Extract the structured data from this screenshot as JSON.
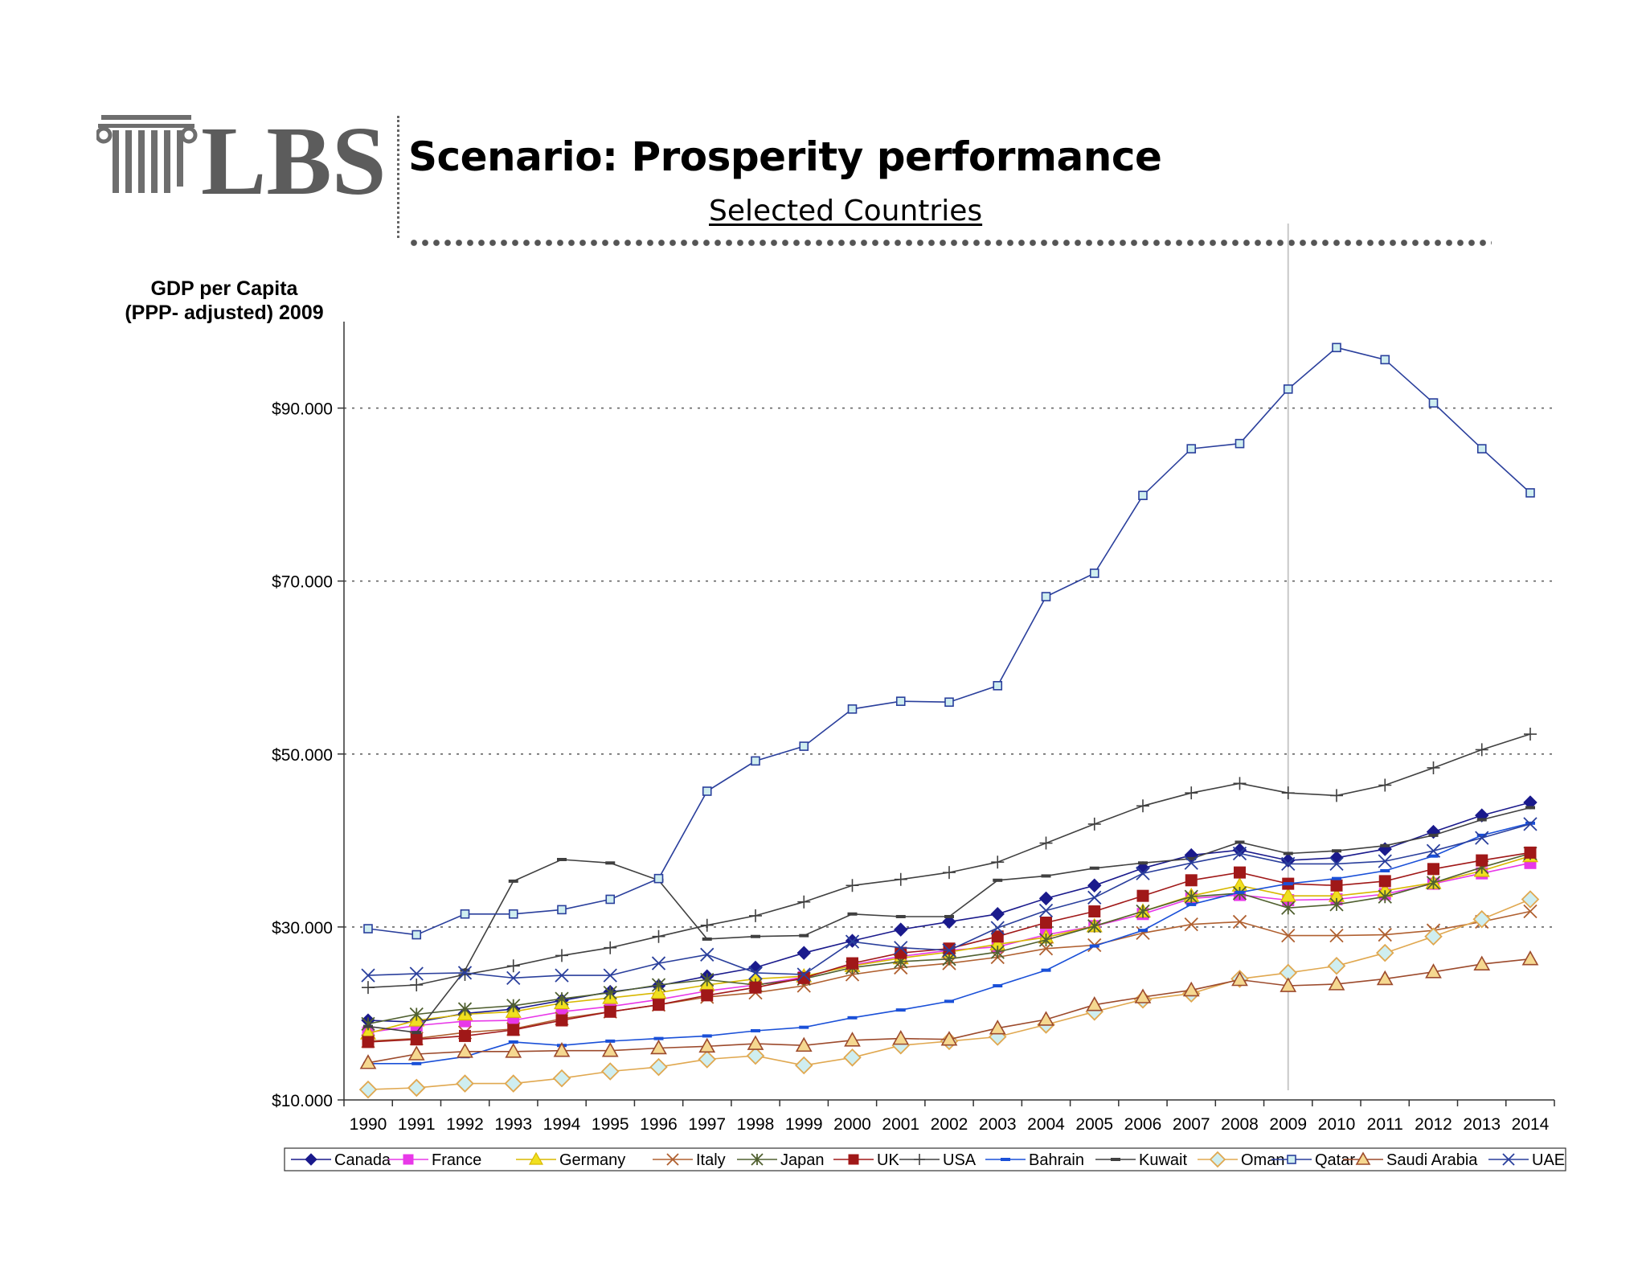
{
  "logo": {
    "text": "LBS"
  },
  "header": {
    "title": "Scenario: Prosperity performance",
    "subtitle": "Selected Countries"
  },
  "chart_data": {
    "type": "line",
    "title": "Scenario: Prosperity performance",
    "subtitle": "Selected Countries",
    "ylabel": "GDP per Capita (PPP- adjusted)  2009",
    "ylabel_lines": [
      "GDP per Capita",
      "(PPP- adjusted)  2009"
    ],
    "xlabel": "",
    "ylim": [
      10000,
      100000
    ],
    "y_ticks": [
      10000,
      30000,
      50000,
      70000,
      90000
    ],
    "y_tick_labels": [
      "$10.000",
      "$30.000",
      "$50.000",
      "$70.000",
      "$90.000"
    ],
    "gridlines": "horizontal dotted",
    "legend_position": "bottom",
    "reference_line_x": "2009",
    "x": [
      "1990",
      "1991",
      "1992",
      "1993",
      "1994",
      "1995",
      "1996",
      "1997",
      "1998",
      "1999",
      "2000",
      "2001",
      "2002",
      "2003",
      "2004",
      "2005",
      "2006",
      "2007",
      "2008",
      "2009",
      "2010",
      "2011",
      "2012",
      "2013",
      "2014"
    ],
    "series": [
      {
        "name": "Canada",
        "color": "#1a1a8c",
        "marker": "diamond-filled",
        "values": [
          19200,
          19000,
          20000,
          20500,
          21500,
          22500,
          23200,
          24300,
          25300,
          27000,
          28400,
          29700,
          30600,
          31500,
          33300,
          34800,
          36800,
          38300,
          38900,
          37700,
          38000,
          39000,
          41000,
          42900,
          44400
        ]
      },
      {
        "name": "France",
        "color": "#e838e8",
        "marker": "square-filled",
        "values": [
          17800,
          18600,
          19100,
          19200,
          20200,
          20800,
          21600,
          22600,
          23300,
          24200,
          25600,
          26600,
          27300,
          27700,
          29100,
          30100,
          31500,
          33300,
          33700,
          33100,
          33200,
          33800,
          35000,
          36200,
          37400
        ]
      },
      {
        "name": "Germany",
        "color": "#d8b800",
        "marker": "triangle-filled",
        "values": [
          17700,
          19200,
          19900,
          20200,
          21200,
          21800,
          22400,
          23300,
          24000,
          24300,
          25500,
          26400,
          27100,
          28000,
          28800,
          30100,
          31800,
          33600,
          34800,
          33600,
          33600,
          34200,
          35100,
          36500,
          38200
        ]
      },
      {
        "name": "Italy",
        "color": "#b06030",
        "marker": "x",
        "values": [
          16800,
          17100,
          17800,
          18200,
          19400,
          20200,
          21000,
          21900,
          22400,
          23200,
          24500,
          25300,
          25800,
          26500,
          27500,
          27900,
          29300,
          30300,
          30600,
          29000,
          29000,
          29100,
          29600,
          30600,
          31800
        ]
      },
      {
        "name": "Japan",
        "color": "#506030",
        "marker": "star",
        "values": [
          18800,
          19900,
          20500,
          20900,
          21700,
          22400,
          23300,
          23900,
          23300,
          24000,
          25300,
          26000,
          26300,
          27100,
          28500,
          30100,
          31800,
          33500,
          33900,
          32200,
          32600,
          33500,
          35100,
          36900,
          38500
        ]
      },
      {
        "name": "UK",
        "color": "#a01818",
        "marker": "square-filled",
        "values": [
          16700,
          17000,
          17400,
          18100,
          19200,
          20200,
          21000,
          22100,
          23000,
          24100,
          25800,
          27000,
          27500,
          28900,
          30500,
          31800,
          33600,
          35400,
          36300,
          35000,
          34800,
          35300,
          36700,
          37700,
          38600
        ]
      },
      {
        "name": "USA",
        "color": "#404040",
        "marker": "plus",
        "values": [
          23000,
          23300,
          24500,
          25500,
          26700,
          27600,
          28900,
          30200,
          31300,
          32900,
          34800,
          35500,
          36300,
          37500,
          39700,
          41900,
          44000,
          45500,
          46600,
          45500,
          45200,
          46400,
          48400,
          50500,
          52300
        ]
      },
      {
        "name": "Bahrain",
        "color": "#1a50d8",
        "marker": "dash",
        "values": [
          14200,
          14200,
          15000,
          16700,
          16300,
          16800,
          17100,
          17400,
          18000,
          18400,
          19500,
          20400,
          21400,
          23200,
          25000,
          27800,
          29600,
          32600,
          34000,
          35000,
          35600,
          36500,
          38200,
          40600,
          42000
        ]
      },
      {
        "name": "Kuwait",
        "color": "#404040",
        "marker": "dash",
        "values": [
          18500,
          17800,
          25000,
          35300,
          37800,
          37400,
          35400,
          28600,
          28900,
          29000,
          31500,
          31200,
          31200,
          35400,
          35900,
          36800,
          37400,
          37900,
          39800,
          38500,
          38800,
          39400,
          40600,
          42400,
          43800
        ]
      },
      {
        "name": "Oman",
        "color": "#e0a850",
        "marker": "diamond-open",
        "values": [
          11200,
          11400,
          11900,
          11900,
          12500,
          13300,
          13800,
          14700,
          15100,
          14000,
          14900,
          16300,
          16800,
          17300,
          18700,
          20200,
          21600,
          22300,
          24000,
          24700,
          25500,
          27000,
          28900,
          30900,
          33200
        ]
      },
      {
        "name": "Qatar",
        "color": "#2a3f9c",
        "marker": "square-open",
        "values": [
          29800,
          29100,
          31500,
          31500,
          32000,
          33200,
          35600,
          45700,
          49200,
          50900,
          55200,
          56100,
          56000,
          57900,
          68200,
          70900,
          79900,
          85300,
          85900,
          92200,
          97000,
          95600,
          90600,
          85300,
          80200
        ]
      },
      {
        "name": "Saudi Arabia",
        "color": "#9c4a2c",
        "marker": "triangle-open",
        "values": [
          14300,
          15300,
          15600,
          15600,
          15700,
          15700,
          16000,
          16200,
          16500,
          16300,
          16900,
          17100,
          17000,
          18300,
          19300,
          21000,
          21900,
          22700,
          23900,
          23200,
          23400,
          24000,
          24800,
          25700,
          26300
        ]
      },
      {
        "name": "UAE",
        "color": "#2a3f9c",
        "marker": "x",
        "values": [
          24400,
          24600,
          24700,
          24100,
          24400,
          24400,
          25800,
          26800,
          24700,
          24500,
          28300,
          27600,
          27300,
          29900,
          31900,
          33400,
          36200,
          37400,
          38500,
          37300,
          37300,
          37600,
          38800,
          40300,
          41900
        ]
      }
    ]
  }
}
